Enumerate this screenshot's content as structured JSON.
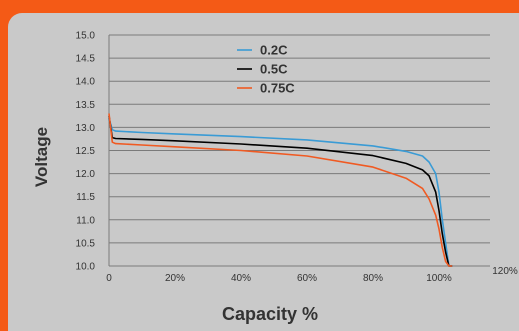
{
  "chart_data": {
    "type": "line",
    "title": "",
    "xlabel": "Capacity %",
    "ylabel": "Voltage",
    "xlim": [
      0,
      120
    ],
    "ylim": [
      10.0,
      15.0
    ],
    "x_ticks": [
      "0",
      "20%",
      "40%",
      "60%",
      "80%",
      "100%",
      "120%"
    ],
    "y_ticks": [
      "10.0",
      "10.5",
      "11.0",
      "11.5",
      "12.0",
      "12.5",
      "13.0",
      "13.5",
      "14.0",
      "14.5",
      "15.0"
    ],
    "grid": "horizontal",
    "legend_position": "top-center",
    "series": [
      {
        "name": "0.2C",
        "color": "#3a9bd5",
        "x": [
          0,
          1,
          2,
          10,
          20,
          40,
          60,
          80,
          90,
          95,
          97,
          99,
          100,
          101,
          102,
          103,
          104
        ],
        "y": [
          13.2,
          12.95,
          12.92,
          12.89,
          12.86,
          12.8,
          12.73,
          12.6,
          12.48,
          12.38,
          12.25,
          12.0,
          11.6,
          11.0,
          10.5,
          10.0,
          10.0
        ]
      },
      {
        "name": "0.5C",
        "color": "#000000",
        "x": [
          0,
          1,
          2,
          10,
          20,
          40,
          60,
          80,
          90,
          95,
          97,
          99,
          100,
          101,
          102,
          103,
          104
        ],
        "y": [
          13.25,
          12.78,
          12.76,
          12.74,
          12.71,
          12.64,
          12.55,
          12.39,
          12.22,
          12.08,
          11.95,
          11.6,
          11.2,
          10.7,
          10.3,
          10.0,
          10.0
        ]
      },
      {
        "name": "0.75C",
        "color": "#f05a22",
        "x": [
          0,
          1,
          2,
          10,
          20,
          40,
          60,
          80,
          90,
          95,
          97,
          99,
          100,
          101,
          102,
          103,
          104
        ],
        "y": [
          13.3,
          12.68,
          12.65,
          12.62,
          12.58,
          12.5,
          12.38,
          12.14,
          11.9,
          11.68,
          11.45,
          11.1,
          10.8,
          10.4,
          10.1,
          10.0,
          10.0
        ]
      }
    ]
  }
}
